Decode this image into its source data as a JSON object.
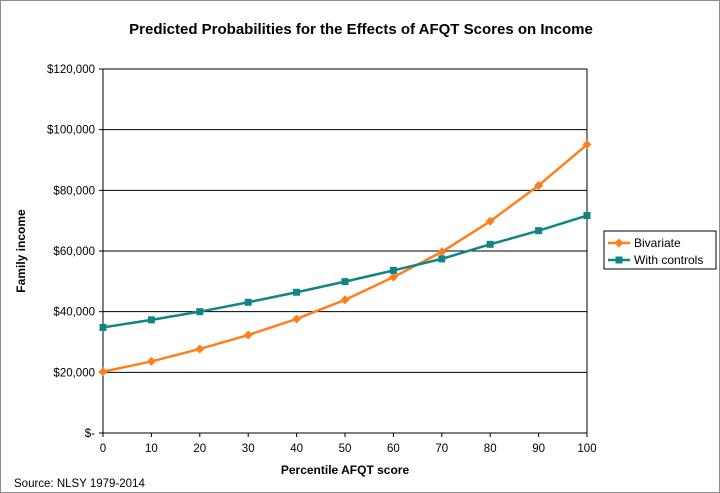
{
  "chart_data": {
    "type": "line",
    "title": "Predicted Probabilities for the Effects of AFQT Scores on Income",
    "xlabel": "Percentile AFQT score",
    "ylabel": "Family income",
    "source": "Source: NLSY 1979-2014",
    "x": [
      0,
      10,
      20,
      30,
      40,
      50,
      60,
      70,
      80,
      90,
      100
    ],
    "xticks": [
      "0",
      "10",
      "20",
      "30",
      "40",
      "50",
      "60",
      "70",
      "80",
      "90",
      "100"
    ],
    "ylim": [
      0,
      120000
    ],
    "yticks": [
      {
        "value": 0,
        "label": "$-"
      },
      {
        "value": 20000,
        "label": "$20,000"
      },
      {
        "value": 40000,
        "label": "$40,000"
      },
      {
        "value": 60000,
        "label": "$60,000"
      },
      {
        "value": 80000,
        "label": "$80,000"
      },
      {
        "value": 100000,
        "label": "$100,000"
      },
      {
        "value": 120000,
        "label": "$120,000"
      }
    ],
    "grid": "horizontal",
    "legend_position": "right",
    "series": [
      {
        "name": "Bivariate",
        "color": "#ff7f1e",
        "marker": "diamond",
        "values": [
          20200,
          23600,
          27700,
          32300,
          37600,
          43900,
          51400,
          59700,
          69800,
          81600,
          95100
        ]
      },
      {
        "name": "With controls",
        "color": "#118585",
        "marker": "square",
        "values": [
          34800,
          37300,
          40000,
          43100,
          46400,
          49900,
          53600,
          57400,
          62200,
          66700,
          71700
        ]
      }
    ]
  }
}
